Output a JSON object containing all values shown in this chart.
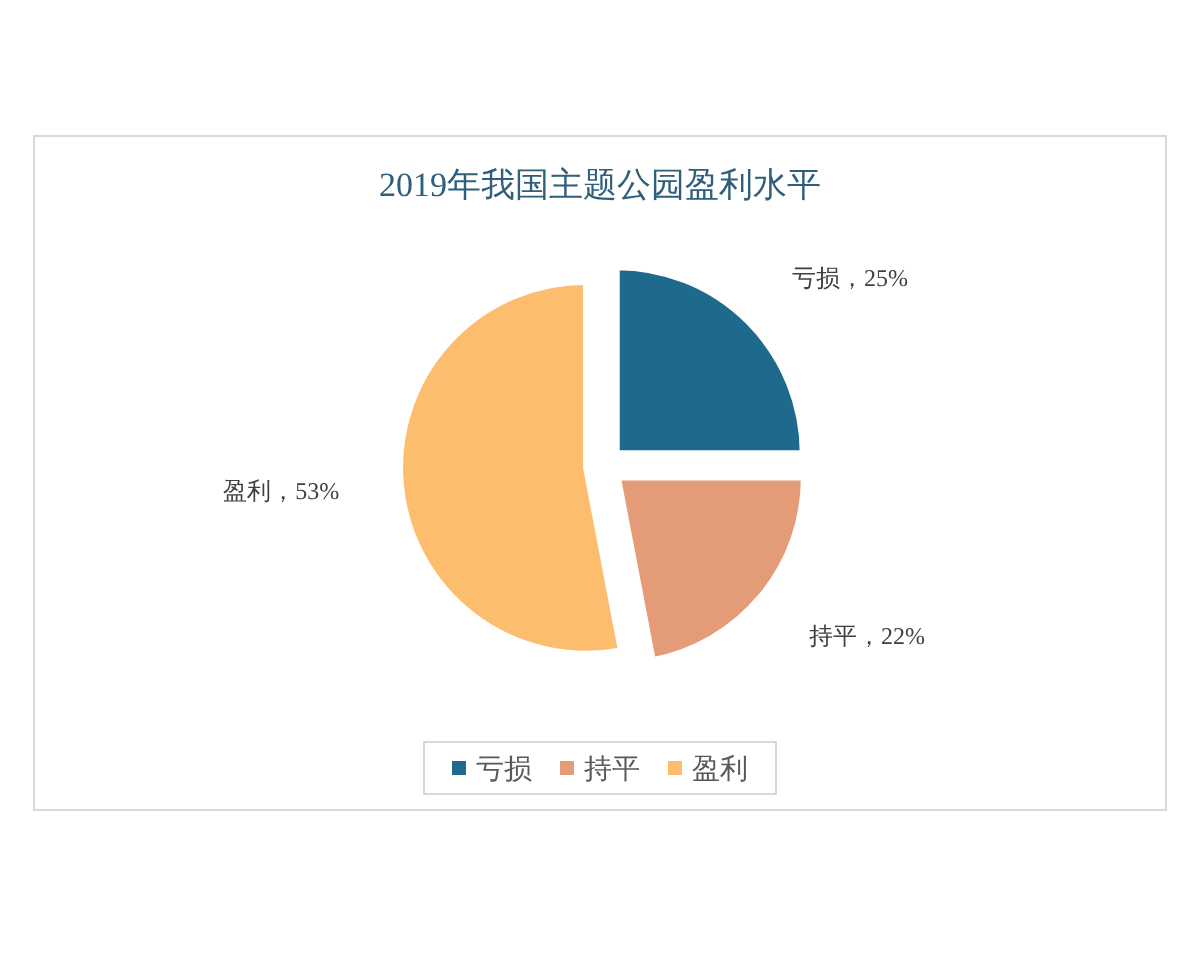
{
  "chart_data": {
    "type": "pie",
    "title": "2019年我国主题公园盈利水平",
    "categories": [
      "亏损",
      "持平",
      "盈利"
    ],
    "values": [
      25,
      22,
      53
    ],
    "colors": [
      "#1e6a8d",
      "#e39b78",
      "#fcbd6e"
    ],
    "value_labels": [
      "亏损，25%",
      "持平，22%",
      "盈利，53%"
    ],
    "legend": "bottom"
  }
}
